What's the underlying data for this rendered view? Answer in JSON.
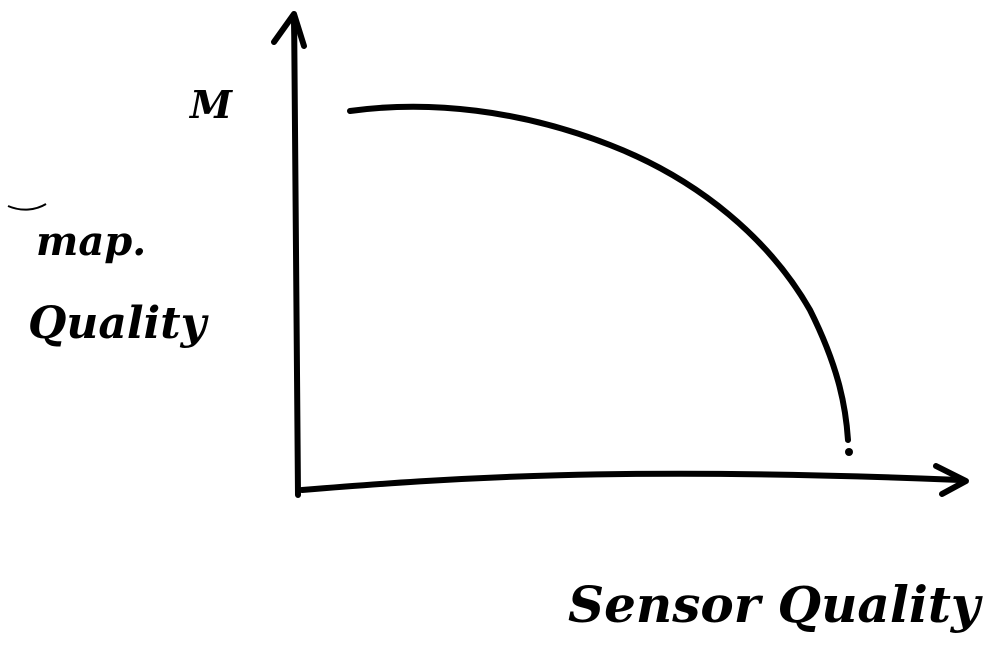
{
  "y_axis": {
    "top_label": "M",
    "label_lines": [
      "map.",
      "Quality"
    ]
  },
  "x_axis": {
    "label": "Sensor Quality"
  }
}
